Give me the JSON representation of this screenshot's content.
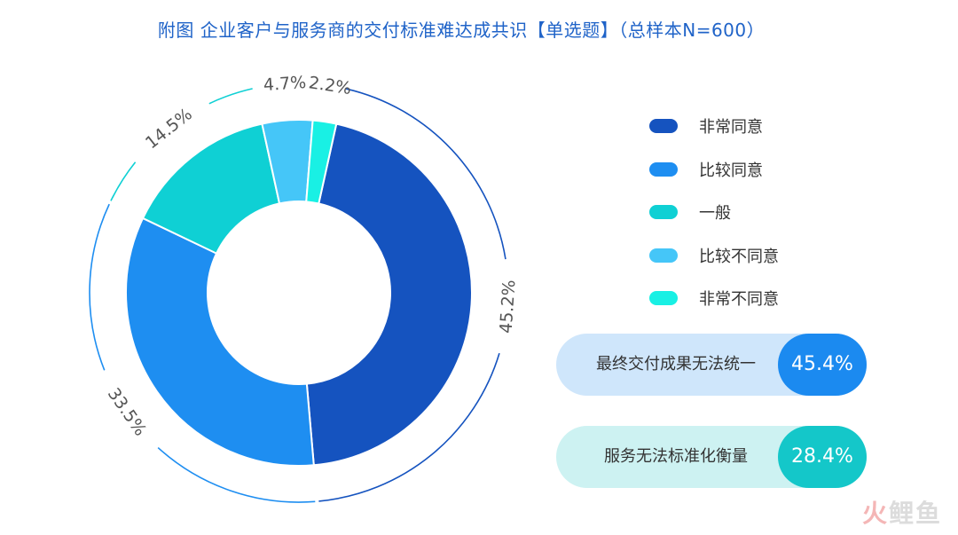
{
  "title": "附图 企业客户与服务商的交付标准难达成共识【单选题】（总样本N=600）",
  "chart_data": {
    "type": "pie",
    "donut": true,
    "title": "附图 企业客户与服务商的交付标准难达成共识【单选题】（总样本N=600）",
    "categories": [
      "非常同意",
      "比较同意",
      "一般",
      "比较不同意",
      "非常不同意"
    ],
    "values": [
      45.2,
      33.5,
      14.5,
      4.7,
      2.2
    ],
    "value_labels": [
      "45.2%",
      "33.5%",
      "14.5%",
      "4.7%",
      "2.2%"
    ],
    "colors": [
      "#1553bf",
      "#1e8ef1",
      "#0fd0d4",
      "#45c6f8",
      "#19f0e4"
    ],
    "legend_position": "right"
  },
  "legend": [
    {
      "label": "非常同意",
      "color": "#1553bf"
    },
    {
      "label": "比较同意",
      "color": "#1e8ef1"
    },
    {
      "label": "一般",
      "color": "#0fd0d4"
    },
    {
      "label": "比较不同意",
      "color": "#45c6f8"
    },
    {
      "label": "非常不同意",
      "color": "#19f0e4"
    }
  ],
  "stats": [
    {
      "label": "最终交付成果无法统一",
      "value": "45.4%"
    },
    {
      "label": "服务无法标准化衡量",
      "value": "28.4%"
    }
  ],
  "watermark": {
    "part1": "火",
    "part2": "鲤鱼"
  }
}
